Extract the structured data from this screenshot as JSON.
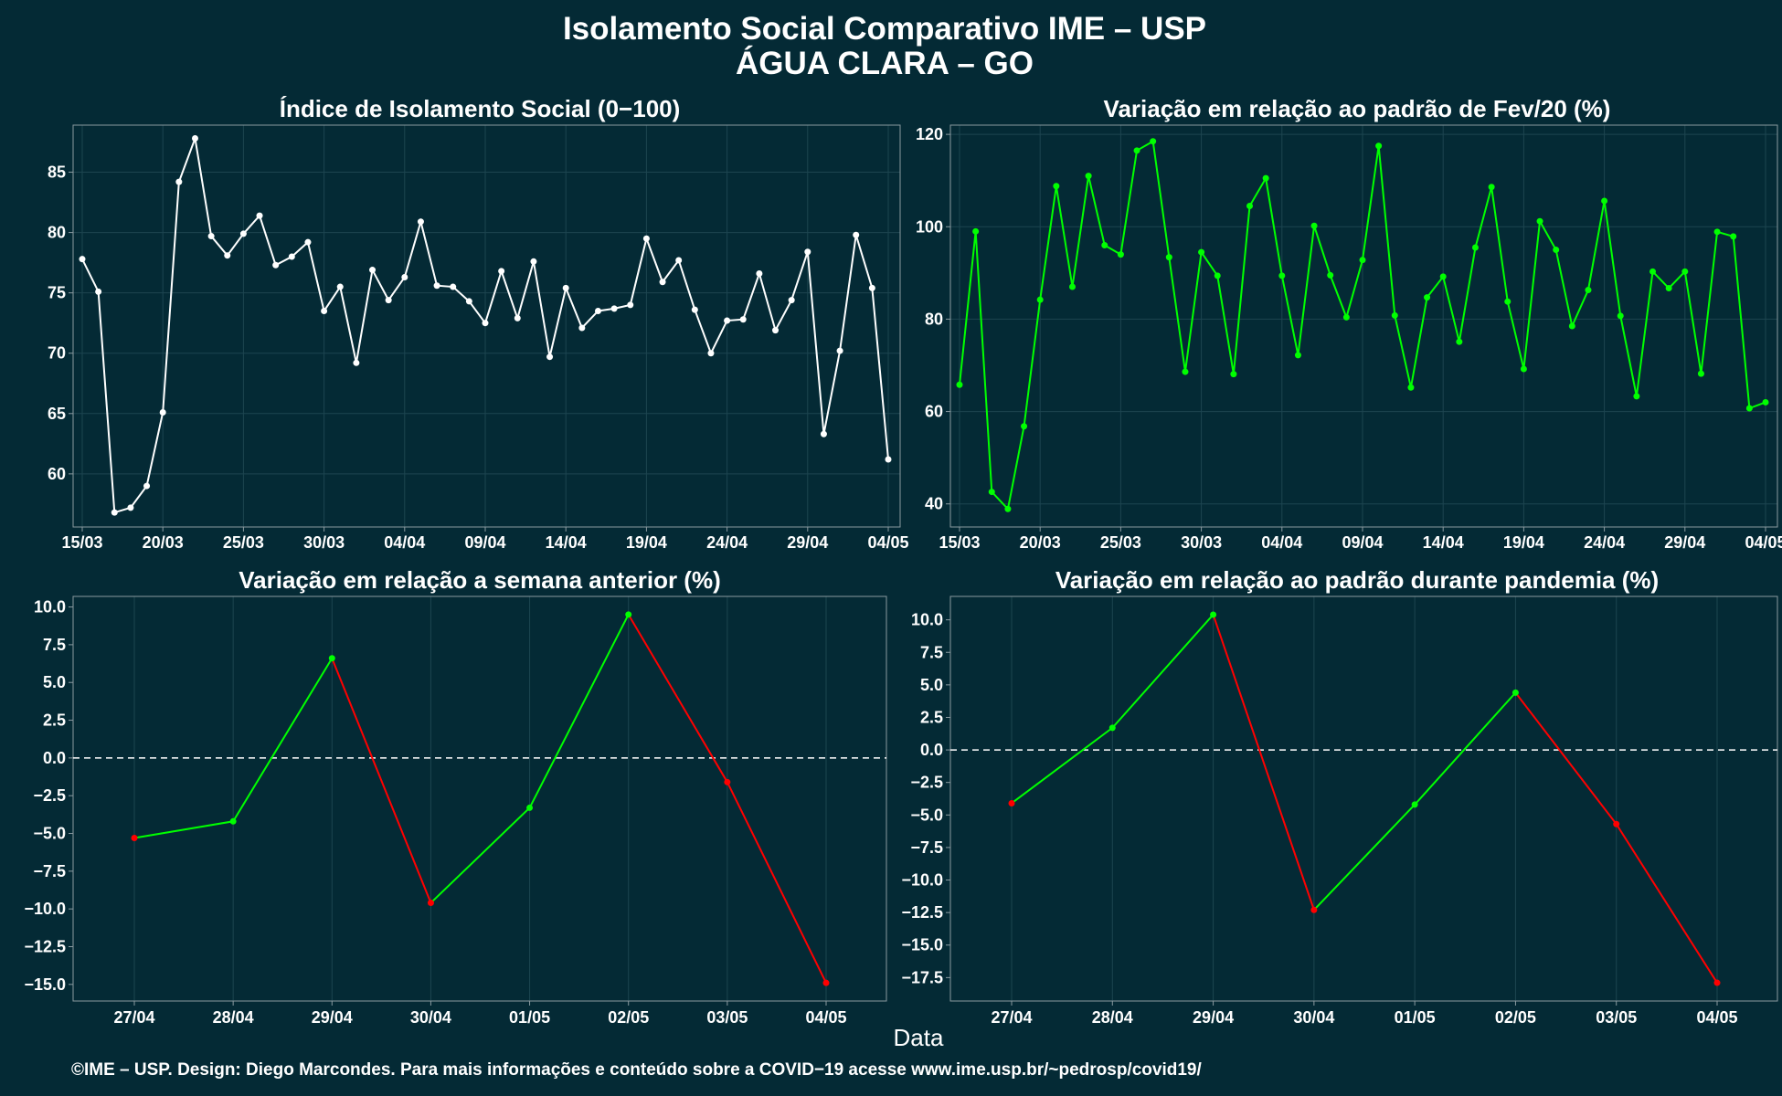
{
  "page": {
    "title_line1": "Isolamento Social Comparativo IME – USP",
    "title_line2": "ÁGUA CLARA – GO",
    "xlabel": "Data",
    "caption": "©IME – USP. Design: Diego Marcondes. Para mais informações e conteúdo sobre a COVID−19 acesse www.ime.usp.br/~pedrosp/covid19/"
  },
  "colors": {
    "background": "#042a35",
    "plot_background": "#042a35",
    "frame": "#8a9aa0",
    "grid": "#1d4550",
    "white_series": "#ffffff",
    "green_series": "#00ff00",
    "positive": "#00ff00",
    "negative": "#ff0000",
    "zero_line": "#ffffff"
  },
  "chart_data": [
    {
      "type": "line",
      "title": "Índice de Isolamento Social (0−100)",
      "color": "#ffffff",
      "x_start": "2020-03-15",
      "xticks": [
        "15/03",
        "20/03",
        "25/03",
        "30/03",
        "04/04",
        "09/04",
        "14/04",
        "19/04",
        "24/04",
        "29/04",
        "04/05"
      ],
      "xtick_positions": [
        0,
        5,
        10,
        15,
        20,
        25,
        30,
        35,
        40,
        45,
        50
      ],
      "yticks": [
        "60",
        "65",
        "70",
        "75",
        "80",
        "85"
      ],
      "ylim": [
        55.6,
        88.9
      ],
      "values": [
        77.8,
        75.1,
        56.8,
        57.2,
        59.0,
        65.1,
        84.2,
        87.8,
        79.7,
        78.1,
        79.9,
        81.4,
        77.3,
        78.0,
        79.2,
        73.5,
        75.5,
        69.2,
        76.9,
        74.4,
        76.3,
        80.9,
        75.6,
        75.5,
        74.3,
        72.5,
        76.8,
        72.9,
        77.6,
        69.7,
        75.4,
        72.1,
        73.5,
        73.7,
        74.0,
        79.5,
        75.9,
        77.7,
        73.6,
        70.0,
        72.7,
        72.8,
        76.6,
        71.9,
        74.4,
        78.4,
        63.3,
        70.2,
        79.8,
        75.4,
        61.2
      ]
    },
    {
      "type": "line",
      "title": "Variação em relação ao padrão de Fev/20 (%)",
      "color": "#00ff00",
      "x_start": "2020-03-15",
      "xticks": [
        "15/03",
        "20/03",
        "25/03",
        "30/03",
        "04/04",
        "09/04",
        "14/04",
        "19/04",
        "24/04",
        "29/04",
        "04/05"
      ],
      "xtick_positions": [
        0,
        5,
        10,
        15,
        20,
        25,
        30,
        35,
        40,
        45,
        50
      ],
      "yticks": [
        "40",
        "60",
        "80",
        "100",
        "120"
      ],
      "ylim": [
        35,
        122
      ],
      "values": [
        65.8,
        99.0,
        42.6,
        38.9,
        56.8,
        84.2,
        108.8,
        87.0,
        111.0,
        96.0,
        94.0,
        116.5,
        118.5,
        93.4,
        68.6,
        94.5,
        89.4,
        68.1,
        104.5,
        110.5,
        89.4,
        72.2,
        100.2,
        89.5,
        80.4,
        92.8,
        117.5,
        80.8,
        65.2,
        84.7,
        89.2,
        75.1,
        95.5,
        108.6,
        83.8,
        69.2,
        101.2,
        95.0,
        78.5,
        86.3,
        105.6,
        80.7,
        63.3,
        90.3,
        86.7,
        90.3,
        68.2,
        98.9,
        97.9,
        60.7,
        62.0
      ]
    },
    {
      "type": "line",
      "title": "Variação em relação a semana anterior (%)",
      "categories": [
        "27/04",
        "28/04",
        "29/04",
        "30/04",
        "01/05",
        "02/05",
        "03/05",
        "04/05"
      ],
      "values": [
        -5.3,
        -4.2,
        6.6,
        -9.6,
        -3.3,
        9.5,
        -1.6,
        -14.9
      ],
      "yticks": [
        "10.0",
        "7.5",
        "5.0",
        "2.5",
        "0.0",
        "−2.5",
        "−5.0",
        "−7.5",
        "−10.0",
        "−12.5",
        "−15.0"
      ],
      "ytick_values": [
        10,
        7.5,
        5,
        2.5,
        0,
        -2.5,
        -5,
        -7.5,
        -10,
        -12.5,
        -15
      ],
      "ylim": [
        -16.1,
        10.7
      ],
      "zero_line": "dashed"
    },
    {
      "type": "line",
      "title": "Variação em relação ao padrão durante pandemia (%)",
      "categories": [
        "27/04",
        "28/04",
        "29/04",
        "30/04",
        "01/05",
        "02/05",
        "03/05",
        "04/05"
      ],
      "values": [
        -4.1,
        1.7,
        10.4,
        -12.3,
        -4.2,
        4.4,
        -5.7,
        -17.9
      ],
      "yticks": [
        "10.0",
        "7.5",
        "5.0",
        "2.5",
        "0.0",
        "−2.5",
        "−5.0",
        "−7.5",
        "−10.0",
        "−12.5",
        "−15.0",
        "−17.5"
      ],
      "ytick_values": [
        10,
        7.5,
        5,
        2.5,
        0,
        -2.5,
        -5,
        -7.5,
        -10,
        -12.5,
        -15,
        -17.5
      ],
      "ylim": [
        -19.3,
        11.8
      ],
      "zero_line": "dashed"
    }
  ]
}
